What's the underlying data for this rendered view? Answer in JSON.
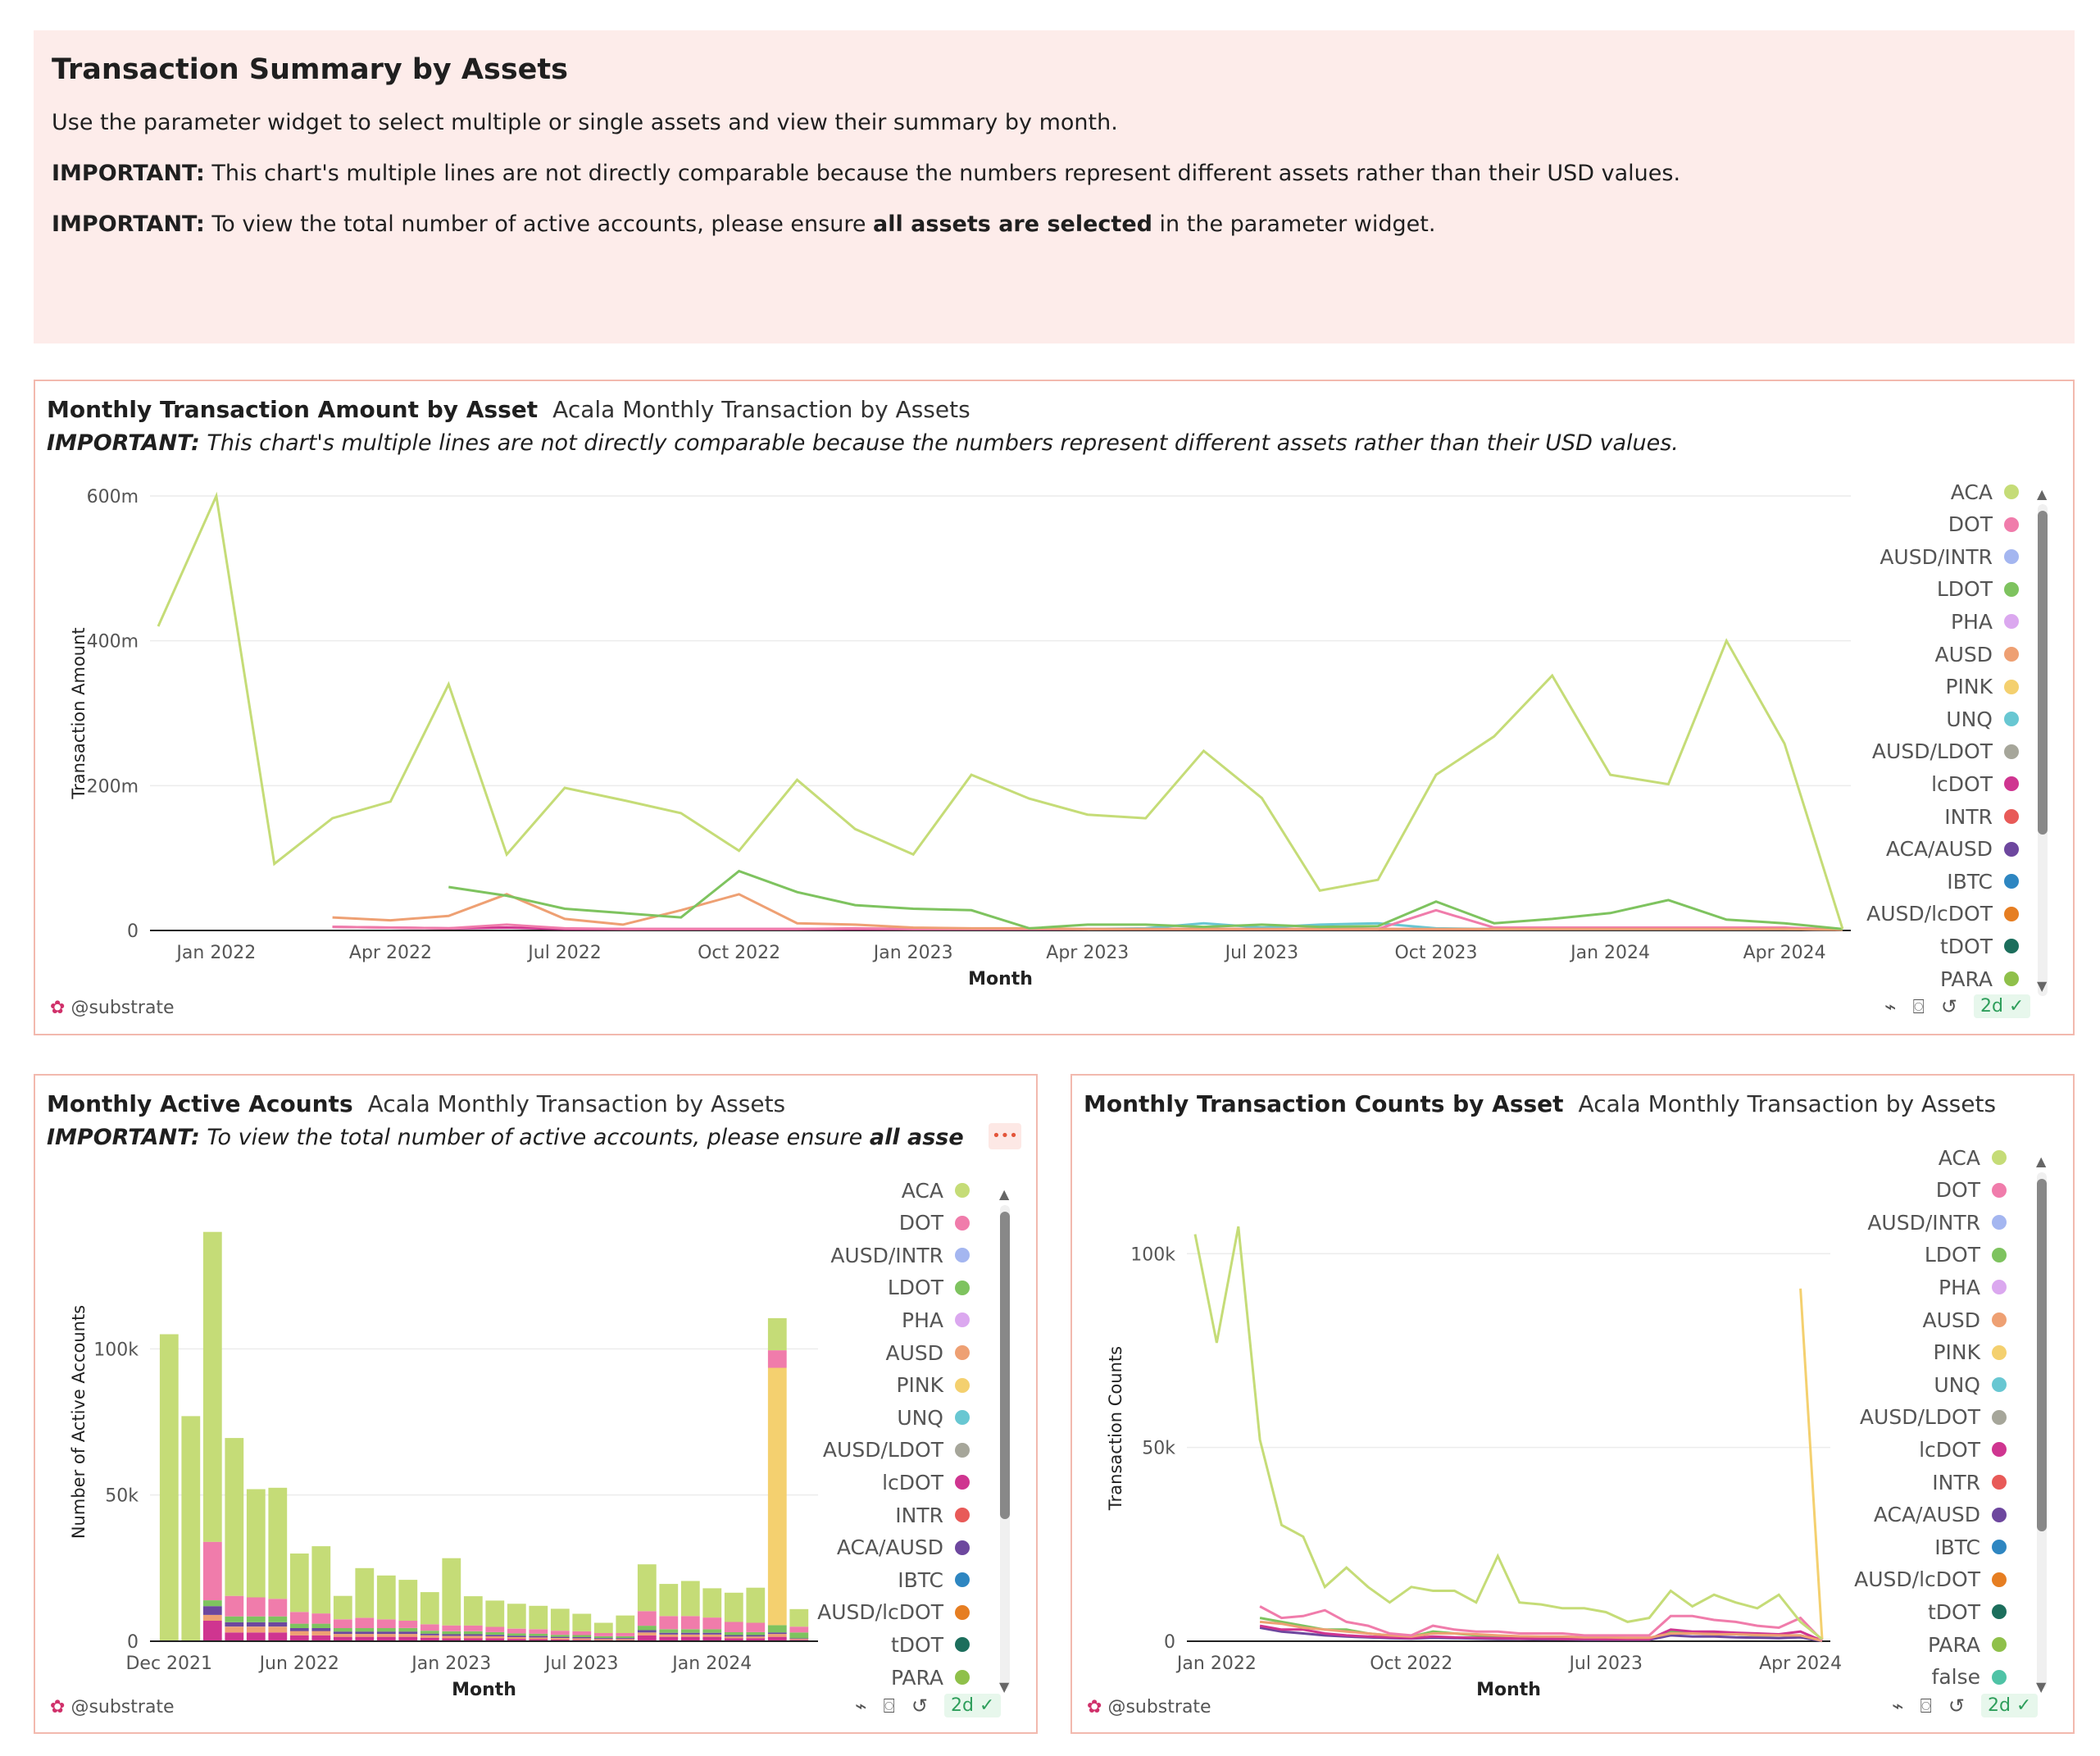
{
  "intro": {
    "title": "Transaction Summary by Assets",
    "line1": "Use the parameter widget to select multiple or single assets and view their summary by month.",
    "line2_bold": "IMPORTANT:",
    "line2_rest": " This chart's multiple lines are not directly comparable because the numbers represent different assets rather than their USD values.",
    "line3_bold": "IMPORTANT:",
    "line3_a": " To view the total number of active accounts, please ensure ",
    "line3_b": "all assets are selected",
    "line3_c": " in the parameter widget."
  },
  "legend": [
    "ACA",
    "DOT",
    "AUSD/INTR",
    "LDOT",
    "PHA",
    "AUSD",
    "PINK",
    "UNQ",
    "AUSD/LDOT",
    "lcDOT",
    "INTR",
    "ACA/AUSD",
    "IBTC",
    "AUSD/lcDOT",
    "tDOT",
    "PARA",
    "false"
  ],
  "colors": {
    "ACA": "#c5dc77",
    "DOT": "#f07cab",
    "AUSD/INTR": "#a4b6f0",
    "LDOT": "#7ec35f",
    "PHA": "#dba8ef",
    "AUSD": "#eea073",
    "PINK": "#f4d06f",
    "UNQ": "#68c7d2",
    "AUSD/LDOT": "#a6a69a",
    "lcDOT": "#cf3590",
    "INTR": "#e85a58",
    "ACA/AUSD": "#6d479e",
    "IBTC": "#2e86c1",
    "AUSD/lcDOT": "#e67e22",
    "tDOT": "#1c6e5c",
    "PARA": "#8fc04a",
    "false": "#4fc3a6"
  },
  "footer": {
    "handle": "@substrate",
    "age": "2d"
  },
  "panel1": {
    "title": "Monthly Transaction Amount by Asset",
    "subtitle": "Acala Monthly Transaction by Assets",
    "note_bold": "IMPORTANT:",
    "note_rest": " This chart's multiple lines are not directly comparable because the numbers represent different assets rather than their USD values."
  },
  "panel2": {
    "title": "Monthly Active Acounts",
    "subtitle": "Acala Monthly Transaction by Assets",
    "note_bold": "IMPORTANT:",
    "note_rest": " To view the total number of active accounts, please ensure ",
    "note_bold2": "all assets are",
    "menu": "•••"
  },
  "panel3": {
    "title": "Monthly Transaction Counts by Asset",
    "subtitle": "Acala Monthly Transaction by Assets"
  },
  "chart_data": [
    {
      "type": "line",
      "title": "Monthly Transaction Amount by Asset",
      "xlabel": "Month",
      "ylabel": "Transaction Amount",
      "x_ticks": [
        "Jan 2022",
        "Apr 2022",
        "Jul 2022",
        "Oct 2022",
        "Jan 2023",
        "Apr 2023",
        "Jul 2023",
        "Oct 2023",
        "Jan 2024",
        "Apr 2024"
      ],
      "y_ticks": [
        "0",
        "200m",
        "400m",
        "600m"
      ],
      "ylim": [
        0,
        600000000
      ],
      "x": [
        "2021-12",
        "2022-01",
        "2022-02",
        "2022-03",
        "2022-04",
        "2022-05",
        "2022-06",
        "2022-07",
        "2022-08",
        "2022-09",
        "2022-10",
        "2022-11",
        "2022-12",
        "2023-01",
        "2023-02",
        "2023-03",
        "2023-04",
        "2023-05",
        "2023-06",
        "2023-07",
        "2023-08",
        "2023-09",
        "2023-10",
        "2023-11",
        "2023-12",
        "2024-01",
        "2024-02",
        "2024-03",
        "2024-04",
        "2024-05"
      ],
      "series": [
        {
          "name": "ACA",
          "values": [
            420,
            600,
            92,
            155,
            178,
            340,
            105,
            197,
            180,
            162,
            110,
            208,
            140,
            105,
            215,
            182,
            160,
            155,
            248,
            183,
            55,
            70,
            215,
            268,
            352,
            215,
            202,
            400,
            258,
            2
          ]
        },
        {
          "name": "LDOT",
          "values": [
            null,
            null,
            null,
            null,
            null,
            60,
            48,
            30,
            24,
            18,
            82,
            53,
            35,
            30,
            28,
            3,
            8,
            8,
            5,
            8,
            5,
            6,
            40,
            10,
            16,
            24,
            42,
            15,
            10,
            2
          ]
        },
        {
          "name": "AUSD",
          "values": [
            null,
            null,
            null,
            18,
            14,
            20,
            50,
            16,
            8,
            28,
            50,
            10,
            8,
            4,
            3,
            3,
            2,
            2,
            2,
            2,
            2,
            2,
            2,
            2,
            2,
            2,
            2,
            2,
            2,
            1
          ]
        },
        {
          "name": "DOT",
          "values": [
            null,
            null,
            null,
            5,
            4,
            3,
            8,
            3,
            2,
            2,
            2,
            2,
            3,
            2,
            2,
            2,
            2,
            2,
            2,
            2,
            2,
            2,
            28,
            4,
            4,
            4,
            4,
            4,
            4,
            1
          ]
        },
        {
          "name": "UNQ",
          "values": [
            null,
            null,
            null,
            null,
            null,
            null,
            null,
            null,
            null,
            null,
            null,
            null,
            null,
            null,
            null,
            null,
            2,
            3,
            10,
            4,
            8,
            10,
            3,
            2,
            2,
            2,
            2,
            2,
            2,
            1
          ]
        },
        {
          "name": "lcDOT",
          "values": [
            null,
            null,
            null,
            5,
            4,
            3,
            4,
            2,
            2,
            2,
            2,
            2,
            2,
            2,
            2,
            2,
            2,
            2,
            2,
            2,
            2,
            2,
            2,
            2,
            2,
            2,
            2,
            2,
            2,
            1
          ]
        }
      ],
      "legend_visible": [
        "ACA",
        "DOT",
        "AUSD/INTR",
        "LDOT",
        "PHA",
        "AUSD",
        "PINK",
        "UNQ",
        "AUSD/LDOT",
        "lcDOT",
        "INTR",
        "ACA/AUSD",
        "IBTC",
        "AUSD/lcDOT",
        "tDOT",
        "PARA"
      ],
      "legend_position": "right"
    },
    {
      "type": "bar",
      "stacked": true,
      "title": "Monthly Active Acounts",
      "xlabel": "Month",
      "ylabel": "Number of Active Accounts",
      "x_ticks": [
        "Dec 2021",
        "Jun 2022",
        "Jan 2023",
        "Jul 2023",
        "Jan 2024"
      ],
      "y_ticks": [
        "0",
        "50k",
        "100k"
      ],
      "ylim": [
        0,
        150000
      ],
      "categories": [
        "2021-12",
        "2022-01",
        "2022-02",
        "2022-03",
        "2022-04",
        "2022-05",
        "2022-06",
        "2022-07",
        "2022-08",
        "2022-09",
        "2022-10",
        "2022-11",
        "2022-12",
        "2023-01",
        "2023-02",
        "2023-03",
        "2023-04",
        "2023-05",
        "2023-06",
        "2023-07",
        "2023-08",
        "2023-09",
        "2023-10",
        "2023-11",
        "2023-12",
        "2024-01",
        "2024-02",
        "2024-03",
        "2024-04",
        "2024-05"
      ],
      "series": [
        {
          "name": "lcDOT",
          "values": [
            0,
            0,
            7000,
            3000,
            3000,
            3000,
            2000,
            2000,
            1500,
            1500,
            1500,
            1500,
            1200,
            1000,
            1000,
            1000,
            800,
            700,
            600,
            500,
            400,
            400,
            2000,
            1500,
            1500,
            1500,
            1000,
            1000,
            1500,
            500
          ]
        },
        {
          "name": "AUSD",
          "values": [
            0,
            0,
            2000,
            2000,
            2000,
            2000,
            1500,
            1500,
            1000,
            1000,
            1000,
            1000,
            800,
            800,
            800,
            700,
            600,
            600,
            500,
            500,
            400,
            400,
            1000,
            800,
            800,
            800,
            600,
            600,
            1000,
            300
          ]
        },
        {
          "name": "ACA/AUSD",
          "values": [
            0,
            0,
            3000,
            1500,
            1500,
            1500,
            1000,
            1000,
            800,
            800,
            800,
            800,
            600,
            600,
            600,
            500,
            500,
            500,
            400,
            400,
            300,
            300,
            800,
            600,
            600,
            600,
            500,
            500,
            500,
            200
          ]
        },
        {
          "name": "LDOT",
          "values": [
            0,
            0,
            2000,
            2000,
            2000,
            2000,
            1500,
            1500,
            1200,
            1200,
            1200,
            1200,
            1000,
            1000,
            1000,
            900,
            800,
            800,
            700,
            700,
            600,
            600,
            1500,
            1200,
            1200,
            1200,
            1000,
            1000,
            2500,
            2000
          ]
        },
        {
          "name": "PINK",
          "values": [
            0,
            0,
            0,
            0,
            0,
            0,
            0,
            0,
            0,
            0,
            0,
            0,
            0,
            0,
            0,
            0,
            0,
            0,
            0,
            0,
            0,
            0,
            0,
            0,
            0,
            0,
            0,
            0,
            88000,
            0
          ]
        },
        {
          "name": "DOT",
          "values": [
            0,
            0,
            20000,
            7000,
            6500,
            6000,
            4000,
            3500,
            3000,
            3500,
            3000,
            2500,
            2200,
            2000,
            2000,
            1800,
            1600,
            1500,
            1400,
            1300,
            1100,
            1100,
            5000,
            4500,
            4500,
            4000,
            3500,
            3200,
            6000,
            2000
          ]
        },
        {
          "name": "ACA",
          "values": [
            105000,
            77000,
            106000,
            54000,
            37000,
            38000,
            20000,
            23000,
            8000,
            17000,
            15000,
            14000,
            11000,
            23000,
            10000,
            9000,
            8500,
            8000,
            7500,
            6000,
            3500,
            6000,
            16000,
            11000,
            12000,
            10000,
            10000,
            12000,
            11000,
            6000
          ]
        }
      ],
      "legend_visible": [
        "ACA",
        "DOT",
        "AUSD/INTR",
        "LDOT",
        "PHA",
        "AUSD",
        "PINK",
        "UNQ",
        "AUSD/LDOT",
        "lcDOT",
        "INTR",
        "ACA/AUSD",
        "IBTC",
        "AUSD/lcDOT",
        "tDOT",
        "PARA"
      ],
      "legend_position": "right"
    },
    {
      "type": "line",
      "title": "Monthly Transaction Counts by Asset",
      "xlabel": "Month",
      "ylabel": "Transaction Counts",
      "x_ticks": [
        "Jan 2022",
        "Oct 2022",
        "Jul 2023",
        "Apr 2024"
      ],
      "y_ticks": [
        "0",
        "50k",
        "100k"
      ],
      "ylim": [
        0,
        110000
      ],
      "x": [
        "2021-12",
        "2022-01",
        "2022-02",
        "2022-03",
        "2022-04",
        "2022-05",
        "2022-06",
        "2022-07",
        "2022-08",
        "2022-09",
        "2022-10",
        "2022-11",
        "2022-12",
        "2023-01",
        "2023-02",
        "2023-03",
        "2023-04",
        "2023-05",
        "2023-06",
        "2023-07",
        "2023-08",
        "2023-09",
        "2023-10",
        "2023-11",
        "2023-12",
        "2024-01",
        "2024-02",
        "2024-03",
        "2024-04",
        "2024-05"
      ],
      "series": [
        {
          "name": "ACA",
          "values": [
            105000,
            77000,
            107000,
            52000,
            30000,
            27000,
            14000,
            19000,
            14000,
            10000,
            14000,
            13000,
            13000,
            10000,
            22000,
            10000,
            9500,
            8500,
            8500,
            7500,
            5000,
            6000,
            13000,
            9000,
            12000,
            10000,
            8500,
            12000,
            5000,
            500
          ]
        },
        {
          "name": "PINK",
          "values": [
            null,
            null,
            null,
            null,
            null,
            null,
            null,
            null,
            null,
            null,
            null,
            null,
            null,
            null,
            null,
            null,
            null,
            null,
            null,
            null,
            null,
            null,
            null,
            null,
            null,
            null,
            null,
            null,
            91000,
            500
          ]
        },
        {
          "name": "DOT",
          "values": [
            null,
            null,
            null,
            9000,
            6000,
            6500,
            8000,
            5000,
            4000,
            2000,
            1500,
            4000,
            3000,
            2500,
            2500,
            2000,
            2000,
            2000,
            1500,
            1500,
            1500,
            1500,
            6500,
            6500,
            5500,
            5000,
            4000,
            3500,
            6000,
            200
          ]
        },
        {
          "name": "AUSD",
          "values": [
            null,
            null,
            null,
            5000,
            4500,
            3500,
            3000,
            2500,
            2000,
            1500,
            1200,
            2000,
            2000,
            1800,
            1500,
            1300,
            1200,
            1200,
            1000,
            1000,
            900,
            900,
            2000,
            2000,
            1800,
            1800,
            1600,
            1500,
            1500,
            100
          ]
        },
        {
          "name": "lcDOT",
          "values": [
            null,
            null,
            null,
            4000,
            3000,
            3000,
            2000,
            1500,
            1200,
            1000,
            800,
            1200,
            1000,
            900,
            800,
            700,
            700,
            600,
            600,
            500,
            500,
            500,
            3000,
            2500,
            2500,
            2200,
            2000,
            1800,
            2500,
            100
          ]
        },
        {
          "name": "ACA/AUSD",
          "values": [
            null,
            null,
            null,
            3500,
            2500,
            2000,
            1500,
            1200,
            1000,
            800,
            700,
            900,
            800,
            700,
            600,
            600,
            500,
            500,
            400,
            400,
            400,
            400,
            1500,
            1200,
            1200,
            1000,
            900,
            800,
            1000,
            50
          ]
        },
        {
          "name": "LDOT",
          "values": [
            null,
            null,
            null,
            6000,
            5000,
            4000,
            3000,
            3000,
            2000,
            1500,
            1200,
            2500,
            2000,
            1500,
            1200,
            1000,
            1000,
            900,
            800,
            800,
            700,
            700,
            2500,
            2000,
            2000,
            1800,
            1500,
            1500,
            1500,
            100
          ]
        }
      ],
      "legend_visible": [
        "ACA",
        "DOT",
        "AUSD/INTR",
        "LDOT",
        "PHA",
        "AUSD",
        "PINK",
        "UNQ",
        "AUSD/LDOT",
        "lcDOT",
        "INTR",
        "ACA/AUSD",
        "IBTC",
        "AUSD/lcDOT",
        "tDOT",
        "PARA",
        "false"
      ],
      "legend_position": "right"
    }
  ]
}
